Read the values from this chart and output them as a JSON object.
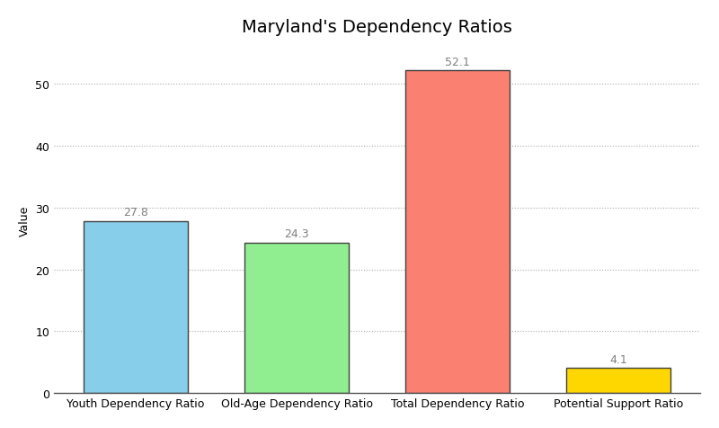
{
  "title": "Maryland's Dependency Ratios",
  "categories": [
    "Youth Dependency Ratio",
    "Old-Age Dependency Ratio",
    "Total Dependency Ratio",
    "Potential Support Ratio"
  ],
  "values": [
    27.8,
    24.3,
    52.1,
    4.1
  ],
  "bar_colors": [
    "#87CEEB",
    "#90EE90",
    "#FA8072",
    "#FFD700"
  ],
  "bar_edge_color": "#404040",
  "ylabel": "Value",
  "xlabel": "",
  "ylim": [
    0,
    56
  ],
  "yticks": [
    0,
    10,
    20,
    30,
    40,
    50
  ],
  "title_fontsize": 14,
  "label_fontsize": 9,
  "value_label_fontsize": 9,
  "background_color": "#FFFFFF",
  "grid_color": "#AAAAAA",
  "grid_linestyle": ":",
  "grid_alpha": 1.0,
  "bar_width": 0.65
}
